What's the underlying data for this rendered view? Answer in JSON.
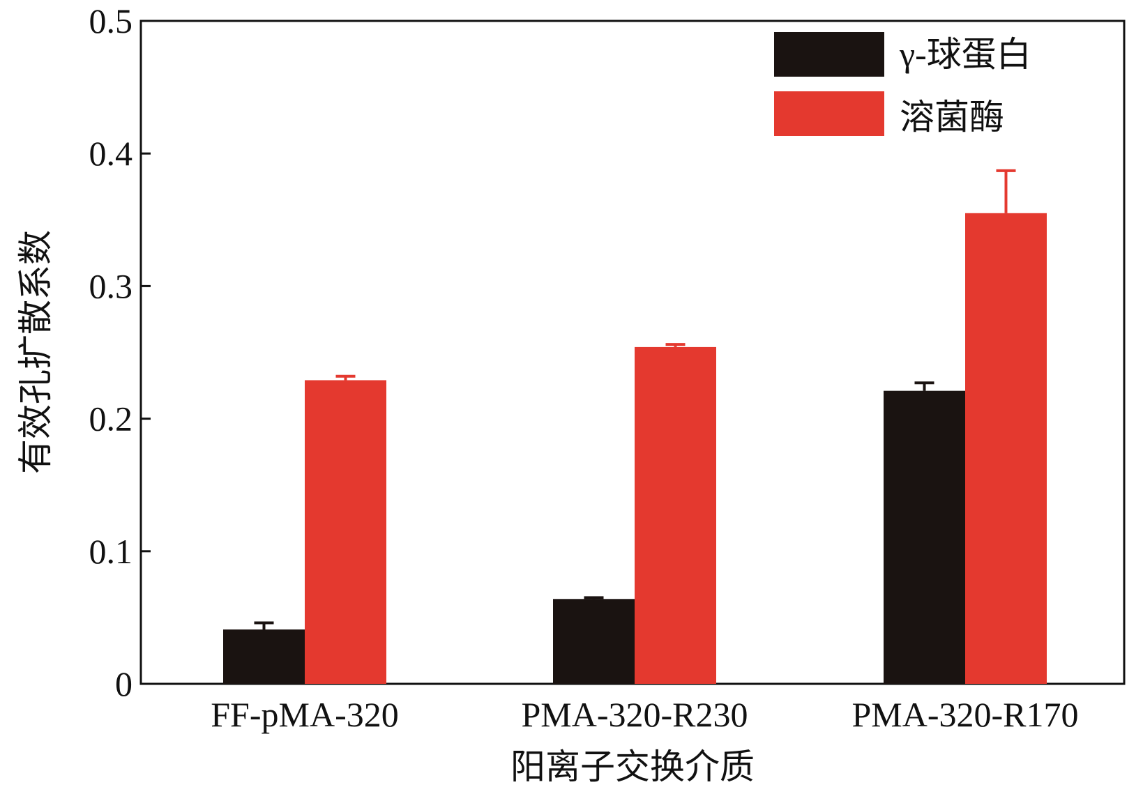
{
  "chart_data": {
    "type": "bar",
    "categories": [
      "FF-pMA-320",
      "PMA-320-R230",
      "PMA-320-R170"
    ],
    "series": [
      {
        "name": "γ-球蛋白",
        "color": "#1a1311",
        "values": [
          0.041,
          0.064,
          0.221
        ],
        "errors": [
          0.005,
          0.001,
          0.006
        ]
      },
      {
        "name": "溶菌酶",
        "color": "#e4392f",
        "values": [
          0.229,
          0.254,
          0.355
        ],
        "errors": [
          0.003,
          0.002,
          0.032
        ]
      }
    ],
    "xlabel": "阳离子交换介质",
    "ylabel": "有效孔扩散系数",
    "ylim": [
      0,
      0.5
    ],
    "yticks": [
      "0",
      "0.1",
      "0.2",
      "0.3",
      "0.4",
      "0.5"
    ],
    "ytick_values": [
      0,
      0.1,
      0.2,
      0.3,
      0.4,
      0.5
    ],
    "grid": false,
    "legend_position": "top-right"
  }
}
